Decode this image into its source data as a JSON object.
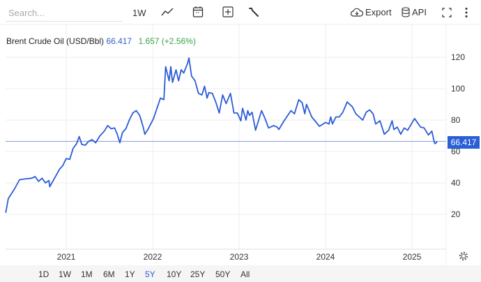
{
  "toolbar": {
    "search_placeholder": "Search...",
    "interval": "1W",
    "export_label": "Export",
    "api_label": "API",
    "icons": [
      "line-chart-icon",
      "calendar-icon",
      "plus-square-icon",
      "wrench-icon",
      "cloud-download-icon",
      "database-icon",
      "expand-icon",
      "more-vertical-icon"
    ]
  },
  "header": {
    "instrument": "Brent Crude Oil (USD/Bbl)",
    "price": "66.417",
    "change": "1.657 (+2.56%)"
  },
  "last_price_label": "66.417",
  "ranges": [
    "1D",
    "1W",
    "1M",
    "6M",
    "1Y",
    "5Y",
    "10Y",
    "25Y",
    "50Y",
    "All"
  ],
  "active_range": "5Y",
  "colors": {
    "line": "#2a5bd7",
    "accent": "#2f5fcf",
    "positive": "#3aa34a",
    "reference": "#8a9be8"
  },
  "chart_data": {
    "type": "line",
    "title": "Brent Crude Oil (USD/Bbl)",
    "xlabel": "",
    "ylabel": "",
    "x_ticks": [
      "2021",
      "2022",
      "2023",
      "2024",
      "2025"
    ],
    "y_ticks": [
      20,
      40,
      60,
      80,
      100,
      120
    ],
    "xlim": [
      2020.3,
      2025.38
    ],
    "ylim": [
      0,
      120
    ],
    "reference_value": 66.417,
    "grid": true,
    "series": [
      {
        "name": "Brent Crude Oil",
        "x": [
          2020.3,
          2020.33,
          2020.4,
          2020.46,
          2020.52,
          2020.6,
          2020.64,
          2020.68,
          2020.72,
          2020.76,
          2020.8,
          2020.81,
          2020.88,
          2020.92,
          2020.96,
          2021.0,
          2021.04,
          2021.08,
          2021.12,
          2021.15,
          2021.18,
          2021.22,
          2021.26,
          2021.3,
          2021.34,
          2021.39,
          2021.44,
          2021.48,
          2021.52,
          2021.56,
          2021.59,
          2021.62,
          2021.65,
          2021.69,
          2021.73,
          2021.77,
          2021.81,
          2021.85,
          2021.89,
          2021.91,
          2021.95,
          2022.01,
          2022.05,
          2022.09,
          2022.13,
          2022.15,
          2022.19,
          2022.21,
          2022.23,
          2022.27,
          2022.3,
          2022.33,
          2022.36,
          2022.4,
          2022.42,
          2022.45,
          2022.49,
          2022.53,
          2022.57,
          2022.6,
          2022.63,
          2022.65,
          2022.69,
          2022.73,
          2022.77,
          2022.81,
          2022.85,
          2022.9,
          2022.94,
          2022.98,
          2023.02,
          2023.04,
          2023.08,
          2023.1,
          2023.12,
          2023.15,
          2023.19,
          2023.26,
          2023.3,
          2023.34,
          2023.4,
          2023.44,
          2023.46,
          2023.52,
          2023.6,
          2023.64,
          2023.69,
          2023.73,
          2023.76,
          2023.78,
          2023.84,
          2023.93,
          2024.0,
          2024.04,
          2024.06,
          2024.08,
          2024.12,
          2024.16,
          2024.2,
          2024.25,
          2024.31,
          2024.35,
          2024.43,
          2024.47,
          2024.51,
          2024.55,
          2024.58,
          2024.63,
          2024.68,
          2024.73,
          2024.77,
          2024.79,
          2024.83,
          2024.87,
          2024.91,
          2024.95,
          2025.03,
          2025.1,
          2025.14,
          2025.19,
          2025.23,
          2025.26,
          2025.27,
          2025.29
        ],
        "y": [
          21,
          30,
          36,
          42,
          42.5,
          43,
          44,
          41,
          43,
          40,
          41.5,
          37.5,
          44.5,
          48.5,
          51,
          55.5,
          55,
          62,
          65,
          69.5,
          64.5,
          64,
          66.5,
          67.5,
          65.5,
          70,
          73,
          76.5,
          74.5,
          75,
          71,
          65.5,
          72,
          74.5,
          80,
          84.5,
          86,
          83,
          75.5,
          71,
          74.5,
          81,
          87.5,
          94,
          93,
          114,
          105,
          114,
          104,
          112,
          105,
          112,
          110,
          115.5,
          119.5,
          108,
          105,
          97,
          96,
          101.5,
          94,
          97.5,
          97,
          91.5,
          84.5,
          96,
          90.5,
          97,
          84.5,
          84.5,
          79.5,
          87.5,
          80,
          86,
          83,
          85,
          73.5,
          86,
          81,
          75,
          76.5,
          75.5,
          74,
          79.5,
          86,
          84,
          93,
          91,
          84,
          90,
          82,
          76,
          78.5,
          77.5,
          82,
          77.5,
          82,
          82,
          85,
          91.5,
          88.5,
          84,
          80,
          85,
          86.5,
          84,
          77.5,
          79.5,
          71,
          73.5,
          79.5,
          74,
          75.5,
          71,
          75,
          73.5,
          81,
          75.5,
          75,
          70.5,
          73,
          65.5,
          65,
          66.4
        ]
      }
    ]
  }
}
